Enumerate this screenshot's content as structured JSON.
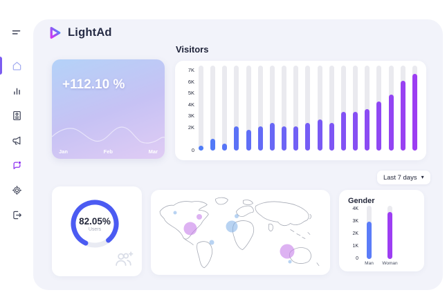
{
  "app": {
    "name": "LightAd"
  },
  "colors": {
    "panel_bg": "#f2f3fa",
    "card_bg": "#ffffff",
    "accent_blue": "#4e7cf7",
    "accent_purple": "#9c3df2",
    "donut_blue": "#4b5bf2",
    "sidebar_active": "#7c5cf0",
    "track_gray": "#eaeaef"
  },
  "sidebar": {
    "items": [
      {
        "id": "menu",
        "icon": "menu-icon",
        "active": false
      },
      {
        "id": "home",
        "icon": "home-icon",
        "active": true
      },
      {
        "id": "analytics",
        "icon": "bar-chart-icon",
        "active": false
      },
      {
        "id": "reports",
        "icon": "report-icon",
        "active": false
      },
      {
        "id": "announcements",
        "icon": "megaphone-icon",
        "active": false
      },
      {
        "id": "messages",
        "icon": "chat-icon",
        "active": false
      },
      {
        "id": "settings",
        "icon": "gear-icon",
        "active": false
      },
      {
        "id": "logout",
        "icon": "logout-icon",
        "active": false
      }
    ]
  },
  "filter": {
    "label": "Last 7 days"
  },
  "icons": {
    "dropdown_caret": "▾"
  },
  "map": {
    "bubble_colors": {
      "blue": "rgba(126,175,232,0.55)",
      "purple": "rgba(198,126,233,0.6)"
    },
    "bubbles": [
      {
        "x": 13.5,
        "y": 26.8,
        "d": 5,
        "color": "blue"
      },
      {
        "x": 27.0,
        "y": 31.7,
        "d": 8,
        "color": "purple"
      },
      {
        "x": 22.0,
        "y": 45.5,
        "d": 19,
        "color": "purple"
      },
      {
        "x": 34.0,
        "y": 61.8,
        "d": 7,
        "color": "blue"
      },
      {
        "x": 45.2,
        "y": 43.0,
        "d": 17,
        "color": "blue"
      },
      {
        "x": 47.9,
        "y": 30.9,
        "d": 6,
        "color": "blue"
      },
      {
        "x": 76.0,
        "y": 72.4,
        "d": 21,
        "color": "purple"
      },
      {
        "x": 77.6,
        "y": 84.6,
        "d": 5,
        "color": "blue"
      }
    ]
  },
  "chart_data": [
    {
      "id": "visitors",
      "type": "bar",
      "title": "Visitors",
      "values": [
        400,
        1000,
        600,
        2100,
        1800,
        2100,
        2400,
        2100,
        2100,
        2400,
        2700,
        2400,
        3400,
        3400,
        3600,
        4300,
        4900,
        6100,
        6700
      ],
      "ymax": 7000,
      "yticks": [
        {
          "label": "7K",
          "value": 7000
        },
        {
          "label": "6K",
          "value": 6000
        },
        {
          "label": "5K",
          "value": 5000
        },
        {
          "label": "4K",
          "value": 4000
        },
        {
          "label": "3K",
          "value": 3000
        },
        {
          "label": "2K",
          "value": 2000
        },
        {
          "label": "0",
          "value": 0
        }
      ],
      "bar_color_start": "#4e7cf7",
      "bar_color_end": "#9c3df2",
      "track_color": "#eaeaef",
      "grid": false,
      "legend": false
    },
    {
      "id": "gender",
      "type": "bar",
      "title": "Gender",
      "categories": [
        "Man",
        "Woman"
      ],
      "values": [
        3000,
        3800
      ],
      "colors": [
        "#5b7cf8",
        "#9d3ef3"
      ],
      "ymax": 4000,
      "yticks": [
        {
          "label": "4K",
          "value": 4000
        },
        {
          "label": "3K",
          "value": 3000
        },
        {
          "label": "2K",
          "value": 2000
        },
        {
          "label": "1K",
          "value": 1000
        },
        {
          "label": "0",
          "value": 0
        }
      ],
      "track_color": "#eaeaef"
    },
    {
      "id": "users",
      "type": "donut",
      "value": 82.05,
      "display": "82.05%",
      "label": "Users",
      "color": "#4b5bf2",
      "track_color": "#e9ebf3"
    },
    {
      "id": "growth",
      "type": "line",
      "value_label": "+112.10 %",
      "x_labels": [
        "Jan",
        "Feb",
        "Mar"
      ]
    }
  ]
}
